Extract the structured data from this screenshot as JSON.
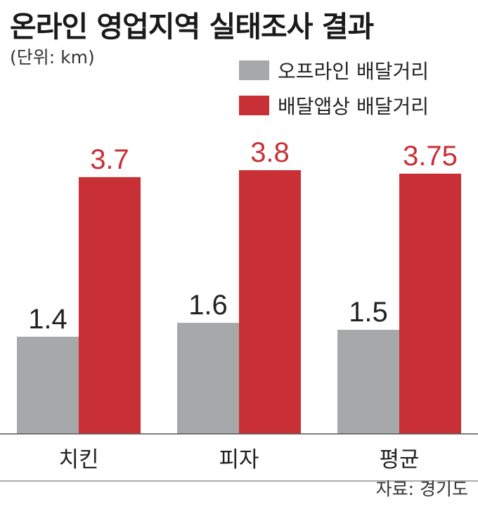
{
  "header": {
    "title": "온라인 영업지역 실태조사 결과",
    "unit": "(단위: km)"
  },
  "footer": {
    "source": "자료: 경기도"
  },
  "colors": {
    "offline": "#a7a8aa",
    "app": "#c93036",
    "axis": "#555555"
  },
  "chart_data": {
    "type": "bar",
    "title": "온라인 영업지역 실태조사 결과",
    "unit": "(단위: km)",
    "categories": [
      "치킨",
      "피자",
      "평균"
    ],
    "series": [
      {
        "name": "오프라인 배달거리",
        "values": [
          1.4,
          1.6,
          1.5
        ],
        "labels": [
          "1.4",
          "1.6",
          "1.5"
        ]
      },
      {
        "name": "배달앱상 배달거리",
        "values": [
          3.7,
          3.8,
          3.75
        ],
        "labels": [
          "3.7",
          "3.8",
          "3.75"
        ]
      }
    ],
    "ylim": [
      0,
      3.8
    ],
    "grid": false,
    "legend": "top-right"
  }
}
